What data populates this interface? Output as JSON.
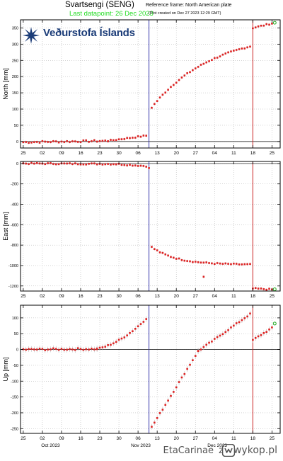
{
  "header": {
    "station_title": "Svartsengi (SENG)",
    "reference_frame": "Reference frame: North American plate",
    "last_datapoint": "Last datapoint: 26 Dec 2023",
    "plot_created": "(Plot created on Dec 27 2023 12:29 GMT)"
  },
  "logo": {
    "text": "Veðurstofa Íslands",
    "brand_color": "#1b3c78"
  },
  "footer": {
    "author": "EtaCarinae",
    "separator": "z",
    "site": "wykop.pl",
    "icon": "wykop-logo-icon"
  },
  "colors": {
    "marker": "#dd2222",
    "errorbar": "#bbbbbb",
    "eruption_line_1": "#3333aa",
    "eruption_line_2": "#cc2222",
    "last_point": "#22aa22",
    "grid": "#aaaaaa"
  },
  "chart_data": [
    {
      "type": "scatter",
      "ylabel": "North [mm]",
      "ylim": [
        -20,
        375
      ],
      "yticks": [
        0,
        50,
        100,
        150,
        200,
        250,
        300,
        350
      ],
      "xlim": [
        "2023-09-24",
        "2023-12-28"
      ],
      "xticks": [
        {
          "date": "2023-09-25",
          "label": "25"
        },
        {
          "date": "2023-10-02",
          "label": "02"
        },
        {
          "date": "2023-10-09",
          "label": "09"
        },
        {
          "date": "2023-10-16",
          "label": "16"
        },
        {
          "date": "2023-10-23",
          "label": "23"
        },
        {
          "date": "2023-10-30",
          "label": "30"
        },
        {
          "date": "2023-11-06",
          "label": "06"
        },
        {
          "date": "2023-11-13",
          "label": "13"
        },
        {
          "date": "2023-11-20",
          "label": "20"
        },
        {
          "date": "2023-11-27",
          "label": "27"
        },
        {
          "date": "2023-12-04",
          "label": "04"
        },
        {
          "date": "2023-12-11",
          "label": "11"
        },
        {
          "date": "2023-12-18",
          "label": "18"
        },
        {
          "date": "2023-12-25",
          "label": "25"
        }
      ],
      "grid": true,
      "zero_line": true,
      "eruption_lines": [
        "2023-11-10",
        "2023-12-18"
      ],
      "segments": [
        {
          "start": "2023-09-25",
          "end": "2023-10-26",
          "from": -2,
          "to": 2,
          "shape": "flat"
        },
        {
          "start": "2023-10-26",
          "end": "2023-11-09",
          "from": 2,
          "to": 18,
          "shape": "linear"
        },
        {
          "start": "2023-11-11",
          "end": "2023-12-17",
          "from": 105,
          "to": 293,
          "shape": "decay",
          "k": 0.045
        },
        {
          "start": "2023-12-18",
          "end": "2023-12-25",
          "from": 350,
          "to": 364,
          "shape": "linear"
        }
      ],
      "last_point": {
        "date": "2023-12-26",
        "value": 366
      }
    },
    {
      "type": "scatter",
      "ylabel": "East [mm]",
      "ylim": [
        -1250,
        20
      ],
      "yticks": [
        0,
        -200,
        -400,
        -600,
        -800,
        -1000,
        -1200
      ],
      "xlim": [
        "2023-09-24",
        "2023-12-28"
      ],
      "xticks": [
        {
          "date": "2023-09-25",
          "label": "25"
        },
        {
          "date": "2023-10-02",
          "label": "02"
        },
        {
          "date": "2023-10-09",
          "label": "09"
        },
        {
          "date": "2023-10-16",
          "label": "16"
        },
        {
          "date": "2023-10-23",
          "label": "23"
        },
        {
          "date": "2023-10-30",
          "label": "30"
        },
        {
          "date": "2023-11-06",
          "label": "06"
        },
        {
          "date": "2023-11-13",
          "label": "13"
        },
        {
          "date": "2023-11-20",
          "label": "20"
        },
        {
          "date": "2023-11-27",
          "label": "27"
        },
        {
          "date": "2023-12-04",
          "label": "04"
        },
        {
          "date": "2023-12-11",
          "label": "11"
        },
        {
          "date": "2023-12-18",
          "label": "18"
        },
        {
          "date": "2023-12-25",
          "label": "25"
        }
      ],
      "grid": true,
      "zero_line": true,
      "eruption_lines": [
        "2023-11-10",
        "2023-12-18"
      ],
      "segments": [
        {
          "start": "2023-09-25",
          "end": "2023-10-29",
          "from": 0,
          "to": -5,
          "shape": "linear"
        },
        {
          "start": "2023-10-29",
          "end": "2023-11-09",
          "from": -5,
          "to": -25,
          "shape": "linear"
        },
        {
          "start": "2023-11-11",
          "end": "2023-12-17",
          "from": -820,
          "to": -990,
          "shape": "decay",
          "k": 0.11
        },
        {
          "start": "2023-12-18",
          "end": "2023-12-25",
          "from": -1225,
          "to": -1235,
          "shape": "linear"
        }
      ],
      "outliers": [
        {
          "date": "2023-11-10",
          "value": -45
        },
        {
          "date": "2023-11-30",
          "value": -1110
        }
      ],
      "last_point": {
        "date": "2023-12-26",
        "value": -1233
      }
    },
    {
      "type": "scatter",
      "ylabel": "Up [mm]",
      "ylim": [
        -265,
        140
      ],
      "yticks": [
        100,
        50,
        0,
        -50,
        -100,
        -150,
        -200,
        -250
      ],
      "xlim": [
        "2023-09-24",
        "2023-12-28"
      ],
      "xticks": [
        {
          "date": "2023-09-25",
          "label": "25"
        },
        {
          "date": "2023-10-02",
          "label": "02"
        },
        {
          "date": "2023-10-09",
          "label": "09"
        },
        {
          "date": "2023-10-16",
          "label": "16"
        },
        {
          "date": "2023-10-23",
          "label": "23"
        },
        {
          "date": "2023-10-30",
          "label": "30"
        },
        {
          "date": "2023-11-06",
          "label": "06"
        },
        {
          "date": "2023-11-13",
          "label": "13"
        },
        {
          "date": "2023-11-20",
          "label": "20"
        },
        {
          "date": "2023-11-27",
          "label": "27"
        },
        {
          "date": "2023-12-04",
          "label": "04"
        },
        {
          "date": "2023-12-11",
          "label": "11"
        },
        {
          "date": "2023-12-18",
          "label": "18"
        },
        {
          "date": "2023-12-25",
          "label": "25"
        }
      ],
      "month_labels": [
        {
          "date": "2023-10-05",
          "label": "Oct 2023"
        },
        {
          "date": "2023-11-07",
          "label": "Nov 2023"
        },
        {
          "date": "2023-12-05",
          "label": "Dec 2023"
        }
      ],
      "grid": true,
      "zero_line": true,
      "eruption_lines": [
        "2023-11-10",
        "2023-12-18"
      ],
      "segments": [
        {
          "start": "2023-09-25",
          "end": "2023-10-22",
          "from": 0,
          "to": 2,
          "shape": "flat"
        },
        {
          "start": "2023-10-22",
          "end": "2023-11-09",
          "from": 2,
          "to": 98,
          "shape": "accel"
        },
        {
          "start": "2023-11-11",
          "end": "2023-11-28",
          "from": -245,
          "to": -5,
          "shape": "linear"
        },
        {
          "start": "2023-11-28",
          "end": "2023-12-17",
          "from": -5,
          "to": 112,
          "shape": "linear"
        },
        {
          "start": "2023-12-18",
          "end": "2023-12-25",
          "from": 30,
          "to": 68,
          "shape": "linear"
        }
      ],
      "last_point": {
        "date": "2023-12-26",
        "value": 82
      }
    }
  ]
}
